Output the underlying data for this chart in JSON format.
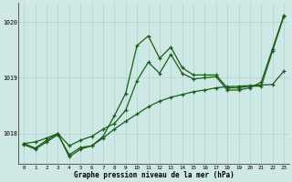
{
  "x": [
    0,
    1,
    2,
    3,
    4,
    5,
    6,
    7,
    8,
    9,
    10,
    11,
    12,
    13,
    14,
    15,
    16,
    17,
    18,
    19,
    20,
    21,
    22,
    23
  ],
  "line_wavy": [
    1017.8,
    1017.72,
    1017.85,
    1017.98,
    1017.62,
    1017.75,
    1017.78,
    1017.95,
    1018.32,
    1018.72,
    1019.58,
    1019.75,
    1019.35,
    1019.55,
    1019.18,
    1019.05,
    1019.05,
    1019.05,
    1018.82,
    1018.82,
    1018.85,
    1018.85,
    1019.48,
    1020.1
  ],
  "line_smooth": [
    1017.82,
    1017.74,
    1017.88,
    1018.0,
    1017.58,
    1017.72,
    1017.78,
    1017.92,
    1018.08,
    1018.22,
    1018.35,
    1018.48,
    1018.58,
    1018.65,
    1018.7,
    1018.75,
    1018.78,
    1018.82,
    1018.84,
    1018.85,
    1018.86,
    1018.87,
    1018.88,
    1019.12
  ],
  "line_straight": [
    1017.82,
    1017.85,
    1017.92,
    1018.0,
    1017.78,
    1017.88,
    1017.95,
    1018.08,
    1018.18,
    1018.42,
    1018.95,
    1019.28,
    1019.08,
    1019.42,
    1019.08,
    1018.98,
    1019.0,
    1019.02,
    1018.78,
    1018.78,
    1018.82,
    1018.92,
    1019.52,
    1020.12
  ],
  "bg_color": "#cde8e5",
  "grid_color": "#b0d4d0",
  "line_color": "#1a5c1a",
  "ylabel_ticks": [
    1018,
    1019,
    1020
  ],
  "xlabel": "Graphe pression niveau de la mer (hPa)",
  "ymin": 1017.45,
  "ymax": 1020.35,
  "xmin": -0.5,
  "xmax": 23.5
}
